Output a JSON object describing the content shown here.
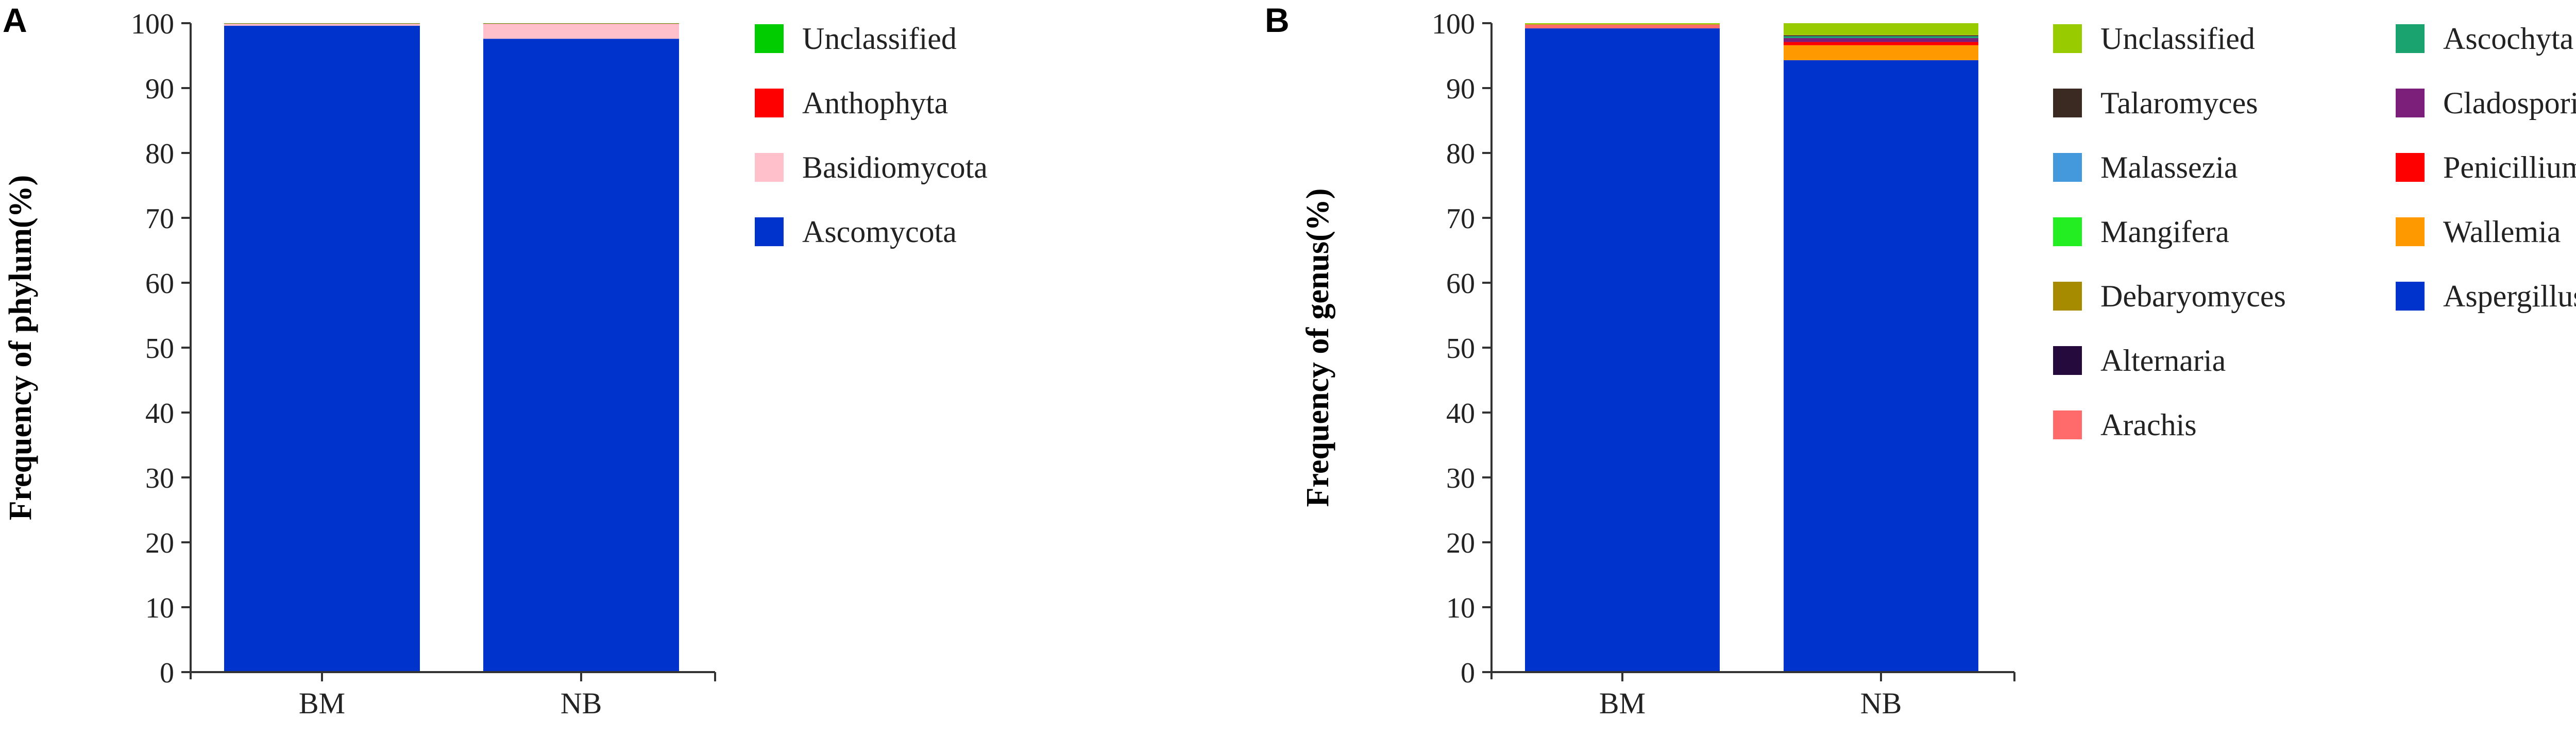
{
  "chart_data": [
    {
      "panel": "A",
      "type": "bar",
      "stacked": true,
      "ylabel": "Frequency of phylum(%)",
      "xlabel": "",
      "ylim": [
        0,
        100
      ],
      "y_ticks": [
        0,
        10,
        20,
        30,
        40,
        50,
        60,
        70,
        80,
        90,
        100
      ],
      "categories": [
        "BM",
        "NB"
      ],
      "legend_placement": "right",
      "series": [
        {
          "name": "Ascomycota",
          "color": "#0033cc",
          "values": [
            99.6,
            97.6
          ]
        },
        {
          "name": "Basidiomycota",
          "color": "#ffc0cb",
          "values": [
            0.3,
            2.3
          ]
        },
        {
          "name": "Anthophyta",
          "color": "#ff0000",
          "values": [
            0.05,
            0.05
          ]
        },
        {
          "name": "Unclassified",
          "color": "#00cc00",
          "values": [
            0.05,
            0.05
          ]
        }
      ],
      "legend_order": [
        "Unclassified",
        "Anthophyta",
        "Basidiomycota",
        "Ascomycota"
      ]
    },
    {
      "panel": "B",
      "type": "bar",
      "stacked": true,
      "ylabel": "Frequency of genus(%)",
      "xlabel": "",
      "ylim": [
        0,
        100
      ],
      "y_ticks": [
        0,
        10,
        20,
        30,
        40,
        50,
        60,
        70,
        80,
        90,
        100
      ],
      "categories": [
        "BM",
        "NB"
      ],
      "legend_placement": "right",
      "series": [
        {
          "name": "Aspergillus",
          "color": "#0033cc",
          "values": [
            99.2,
            94.3
          ]
        },
        {
          "name": "Wallemia",
          "color": "#ff9900",
          "values": [
            0.0,
            2.3
          ]
        },
        {
          "name": "Penicillium",
          "color": "#ff0000",
          "values": [
            0.0,
            0.5
          ]
        },
        {
          "name": "Cladosporium",
          "color": "#7b1f7b",
          "values": [
            0.0,
            0.6
          ]
        },
        {
          "name": "Ascochyta",
          "color": "#1aa36e",
          "values": [
            0.0,
            0.3
          ]
        },
        {
          "name": "Arachis",
          "color": "#ff6b6b",
          "values": [
            0.6,
            0.0
          ]
        },
        {
          "name": "Alternaria",
          "color": "#240a3d",
          "values": [
            0.0,
            0.1
          ]
        },
        {
          "name": "Debaryomyces",
          "color": "#a68a00",
          "values": [
            0.0,
            0.1
          ]
        },
        {
          "name": "Mangifera",
          "color": "#22ee22",
          "values": [
            0.0,
            0.0
          ]
        },
        {
          "name": "Malassezia",
          "color": "#4499dd",
          "values": [
            0.0,
            0.0
          ]
        },
        {
          "name": "Talaromyces",
          "color": "#3a2a22",
          "values": [
            0.0,
            0.0
          ]
        },
        {
          "name": "Unclassified",
          "color": "#99cc00",
          "values": [
            0.2,
            1.8
          ]
        }
      ],
      "legend_columns": [
        [
          "Unclassified",
          "Talaromyces",
          "Malassezia",
          "Mangifera",
          "Debaryomyces",
          "Alternaria",
          "Arachis"
        ],
        [
          "Ascochyta",
          "Cladosporium",
          "Penicillium",
          "Wallemia",
          "Aspergillus"
        ]
      ]
    }
  ]
}
